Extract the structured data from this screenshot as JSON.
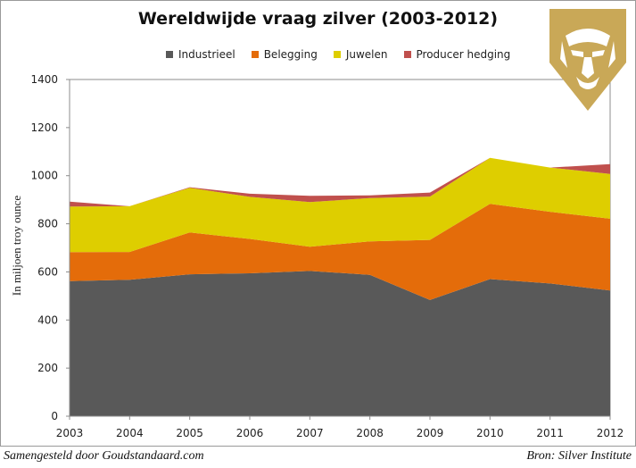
{
  "title": "Wereldwijde vraag zilver (2003-2012)",
  "footer": {
    "left": "Samengesteld door Goudstandaard.com",
    "right": "Bron: Silver Institute"
  },
  "colors": {
    "industrieel": "#595959",
    "belegging": "#e46c0a",
    "juwelen": "#dece00",
    "producer_hedging": "#c0504d",
    "logo_gold": "#c9a857"
  },
  "logo": {
    "icon": "lion-head-icon"
  },
  "chart_data": {
    "type": "area",
    "stacked": true,
    "title": "Wereldwijde vraag zilver (2003-2012)",
    "xlabel": "",
    "ylabel": "In miljoen troy ounce",
    "x": [
      "2003",
      "2004",
      "2005",
      "2006",
      "2007",
      "2008",
      "2009",
      "2010",
      "2011",
      "2012"
    ],
    "ylim": [
      0,
      1400
    ],
    "yticks": [
      0,
      200,
      400,
      600,
      800,
      1000,
      1200,
      1400
    ],
    "legend_position": "top",
    "grid": false,
    "series": [
      {
        "name": "Industrieel",
        "values": [
          562,
          567,
          590,
          594,
          604,
          588,
          483,
          570,
          552,
          523
        ]
      },
      {
        "name": "Belegging",
        "values": [
          120,
          116,
          174,
          143,
          101,
          139,
          250,
          313,
          298,
          298
        ]
      },
      {
        "name": "Juwelen",
        "values": [
          190,
          190,
          186,
          175,
          185,
          180,
          180,
          191,
          184,
          186
        ]
      },
      {
        "name": "Producer hedging",
        "values": [
          20,
          0,
          2,
          13,
          26,
          11,
          17,
          0,
          0,
          41
        ]
      }
    ]
  }
}
